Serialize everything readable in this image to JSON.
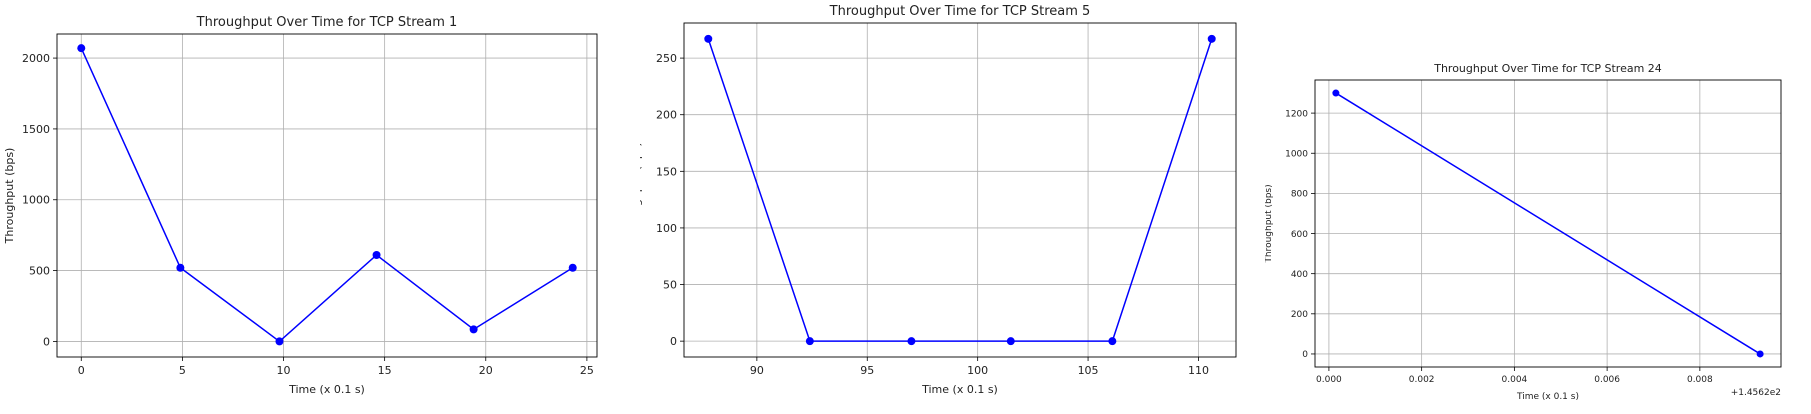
{
  "chart_data": [
    {
      "type": "line",
      "title": "Throughput Over Time for TCP Stream 1",
      "xlabel": "Time (x 0.1 s)",
      "ylabel": "Throughput (bps)",
      "x": [
        0,
        4.9,
        9.8,
        14.6,
        19.4,
        24.3
      ],
      "values": [
        2070,
        520,
        0,
        610,
        85,
        520
      ],
      "xlim": [
        -1.2,
        25.5
      ],
      "ylim": [
        -110,
        2170
      ],
      "xticks": [
        0,
        5,
        10,
        15,
        20,
        25
      ],
      "xtick_labels": [
        "0",
        "5",
        "10",
        "15",
        "20",
        "25"
      ],
      "yticks": [
        0,
        500,
        1000,
        1500,
        2000
      ],
      "ytick_labels": [
        "0",
        "500",
        "1000",
        "1500",
        "2000"
      ],
      "offset_text": "",
      "grid": true,
      "color": "#0000ff"
    },
    {
      "type": "line",
      "title": "Throughput Over Time for TCP Stream 5",
      "xlabel": "Time (x 0.1 s)",
      "ylabel": "Throughput (bps)",
      "x": [
        87.8,
        92.4,
        97.0,
        101.5,
        106.1,
        110.6
      ],
      "values": [
        267,
        0,
        0,
        0,
        0,
        267
      ],
      "xlim": [
        86.7,
        111.7
      ],
      "ylim": [
        -14,
        281
      ],
      "xticks": [
        90,
        95,
        100,
        105,
        110
      ],
      "xtick_labels": [
        "90",
        "95",
        "100",
        "105",
        "110"
      ],
      "yticks": [
        0,
        50,
        100,
        150,
        200,
        250
      ],
      "ytick_labels": [
        "0",
        "50",
        "100",
        "150",
        "200",
        "250"
      ],
      "offset_text": "",
      "grid": true,
      "color": "#0000ff"
    },
    {
      "type": "line",
      "title": "Throughput Over Time for TCP Stream 24",
      "xlabel": "Time (x 0.1 s)",
      "ylabel": "Throughput (bps)",
      "x": [
        0.00015,
        0.0093
      ],
      "values": [
        1300,
        0
      ],
      "xlim": [
        -0.0003,
        0.00975
      ],
      "ylim": [
        -65,
        1365
      ],
      "xticks": [
        0.0,
        0.002,
        0.004,
        0.006,
        0.008
      ],
      "xtick_labels": [
        "0.000",
        "0.002",
        "0.004",
        "0.006",
        "0.008"
      ],
      "yticks": [
        0,
        200,
        400,
        600,
        800,
        1000,
        1200
      ],
      "ytick_labels": [
        "0",
        "200",
        "400",
        "600",
        "800",
        "1000",
        "1200"
      ],
      "offset_text": "+1.4562e2",
      "grid": true,
      "color": "#0000ff"
    }
  ]
}
